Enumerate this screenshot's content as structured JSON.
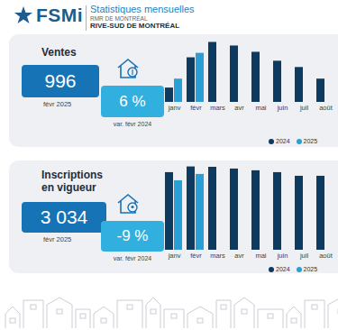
{
  "header": {
    "logo": "FSMi",
    "title": "Statistiques mensuelles",
    "subtitle": "RMR DE MONTRÉAL",
    "region": "RIVE-SUD DE MONTRÉAL"
  },
  "chart_data": [
    {
      "type": "bar",
      "title": "Ventes",
      "annotations": {
        "value": "996",
        "period": "févr 2025",
        "change": "6 %",
        "change_label": "var. févr 2024"
      },
      "categories": [
        "janv",
        "févr",
        "mars",
        "avr",
        "mai",
        "juin",
        "juil",
        "août"
      ],
      "series": [
        {
          "name": "2024",
          "color": "#0d3a5f",
          "values": [
            560,
            940,
            1133,
            1088,
            1009,
            897,
            818,
            672
          ]
        },
        {
          "name": "2025",
          "color": "#2a9fd6",
          "values": [
            672,
            996,
            null,
            null,
            null,
            null,
            null,
            null
          ]
        }
      ],
      "ylim": [
        380,
        1150
      ],
      "tick_labels": "x",
      "legend": "bottom-right"
    },
    {
      "type": "bar",
      "title": "Inscriptions en vigueur",
      "annotations": {
        "value": "3 034",
        "period": "févr 2025",
        "change": "-9 %",
        "change_label": "var. févr 2024"
      },
      "categories": [
        "janv",
        "févr",
        "mars",
        "avr",
        "mai",
        "juin",
        "juil",
        "août"
      ],
      "series": [
        {
          "name": "2024",
          "color": "#0d3a5f",
          "values": [
            3105,
            3334,
            3320,
            3250,
            3180,
            3105,
            2960,
            2960
          ]
        },
        {
          "name": "2025",
          "color": "#2a9fd6",
          "values": [
            2780,
            3034,
            null,
            null,
            null,
            null,
            null,
            null
          ]
        }
      ],
      "ylim": [
        0,
        3500
      ],
      "tick_labels": "x",
      "legend": "bottom-right"
    }
  ]
}
